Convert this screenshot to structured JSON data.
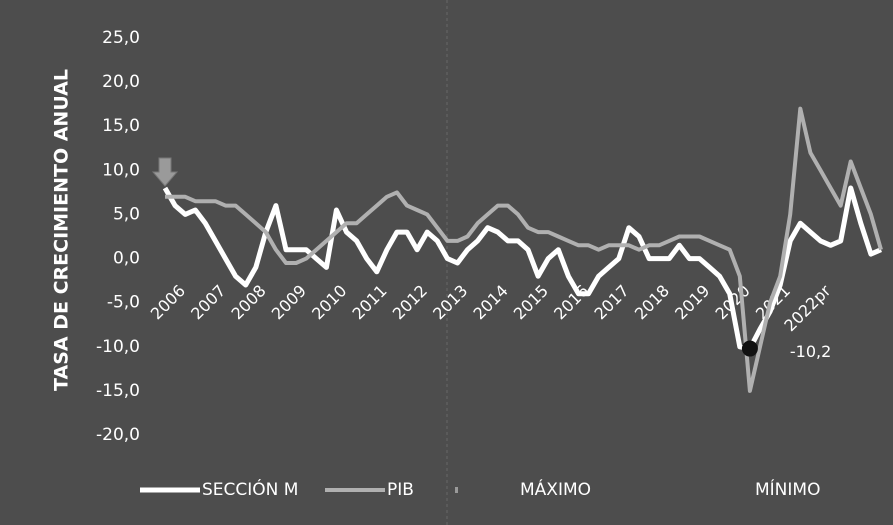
{
  "chart_data": {
    "type": "line",
    "y_label": "TASA DE CRECIMIENTO ANUAL",
    "categories": [
      "2006",
      null,
      null,
      null,
      "2007",
      null,
      null,
      null,
      "2008",
      null,
      null,
      null,
      "2009",
      null,
      null,
      null,
      "2010",
      null,
      null,
      null,
      "2011",
      null,
      null,
      null,
      "2012",
      null,
      null,
      null,
      "2013",
      null,
      null,
      null,
      "2014",
      null,
      null,
      null,
      "2015",
      null,
      null,
      null,
      "2016",
      null,
      null,
      null,
      "2017",
      null,
      null,
      null,
      "2018",
      null,
      null,
      null,
      "2019",
      null,
      null,
      null,
      "2020",
      null,
      null,
      null,
      "2021",
      null,
      null,
      null,
      "2022pr",
      null,
      null,
      null,
      null,
      null,
      null,
      null
    ],
    "series": [
      {
        "name": "SECCIÓN M",
        "color": "#ffffff",
        "width": 5,
        "values": [
          8,
          6,
          5,
          5.5,
          4,
          2,
          0,
          -2,
          -3,
          -1,
          3,
          6,
          1,
          1,
          1,
          0,
          -1,
          5.5,
          3,
          2,
          0,
          -1.5,
          1,
          3,
          3,
          1,
          3,
          2,
          0,
          -0.5,
          1,
          2,
          3.5,
          3,
          2,
          2,
          1,
          -2,
          0,
          1,
          -2,
          -4,
          -4,
          -2,
          -1,
          0,
          3.5,
          2.5,
          0,
          0,
          0,
          1.5,
          0,
          0,
          -1,
          -2,
          -4,
          -10,
          -10.2,
          -8,
          -6,
          -3,
          2,
          4,
          3,
          2,
          1.5,
          2,
          8,
          4,
          0.5,
          1
        ]
      },
      {
        "name": "PIB",
        "color": "#b0b0b0",
        "width": 4,
        "values": [
          7,
          7,
          7,
          6.5,
          6.5,
          6.5,
          6,
          6,
          5,
          4,
          3,
          1,
          -0.5,
          -0.5,
          0,
          1,
          2,
          3,
          4,
          4,
          5,
          6,
          7,
          7.5,
          6,
          5.5,
          5,
          3.5,
          2,
          2,
          2.5,
          4,
          5,
          6,
          6,
          5,
          3.5,
          3,
          3,
          2.5,
          2,
          1.5,
          1.5,
          1,
          1.5,
          1.5,
          1.5,
          1,
          1.5,
          1.5,
          2,
          2.5,
          2.5,
          2.5,
          2,
          1.5,
          1,
          -2,
          -15,
          -10,
          -5,
          -2,
          5,
          17,
          12,
          10,
          8,
          6,
          11,
          8,
          5,
          1
        ]
      },
      {
        "name": "MÁXIMO",
        "color": "#9a9a9a",
        "marker": "arrow",
        "values": [
          8,
          null,
          null,
          null,
          null,
          null,
          null,
          null,
          null,
          null,
          null,
          null,
          null,
          null,
          null,
          null,
          null,
          null,
          null,
          null,
          null,
          null,
          null,
          null,
          null,
          null,
          null,
          null,
          null,
          null,
          null,
          null,
          null,
          null,
          null,
          null,
          null,
          null,
          null,
          null,
          null,
          null,
          null,
          null,
          null,
          null,
          null,
          null,
          null,
          null,
          null,
          null,
          null,
          null,
          null,
          null,
          null,
          null,
          null,
          null,
          null,
          null,
          null,
          null,
          null,
          null,
          null,
          null,
          null,
          null,
          null,
          null
        ]
      },
      {
        "name": "MÍNIMO",
        "color": "#111111",
        "marker": "dot",
        "values": [
          null,
          null,
          null,
          null,
          null,
          null,
          null,
          null,
          null,
          null,
          null,
          null,
          null,
          null,
          null,
          null,
          null,
          null,
          null,
          null,
          null,
          null,
          null,
          null,
          null,
          null,
          null,
          null,
          null,
          null,
          null,
          null,
          null,
          null,
          null,
          null,
          null,
          null,
          null,
          null,
          null,
          null,
          null,
          null,
          null,
          null,
          null,
          null,
          null,
          null,
          null,
          null,
          null,
          null,
          null,
          null,
          null,
          null,
          -10.2,
          null,
          null,
          null,
          null,
          null,
          null,
          null,
          null,
          null,
          null,
          null,
          null,
          null
        ]
      }
    ],
    "annotation": "-10,2",
    "ylim": [
      -20,
      25
    ],
    "yticks": [
      {
        "value": 25,
        "label": "25,0"
      },
      {
        "value": 20,
        "label": "20,0"
      },
      {
        "value": 15,
        "label": "15,0"
      },
      {
        "value": 10,
        "label": "10,0"
      },
      {
        "value": 5,
        "label": "5,0"
      },
      {
        "value": 0,
        "label": "0,0"
      },
      {
        "value": -5,
        "label": "-5,0"
      },
      {
        "value": -10,
        "label": "-10,0"
      },
      {
        "value": -15,
        "label": "-15,0"
      },
      {
        "value": -20,
        "label": "-20,0"
      }
    ]
  }
}
